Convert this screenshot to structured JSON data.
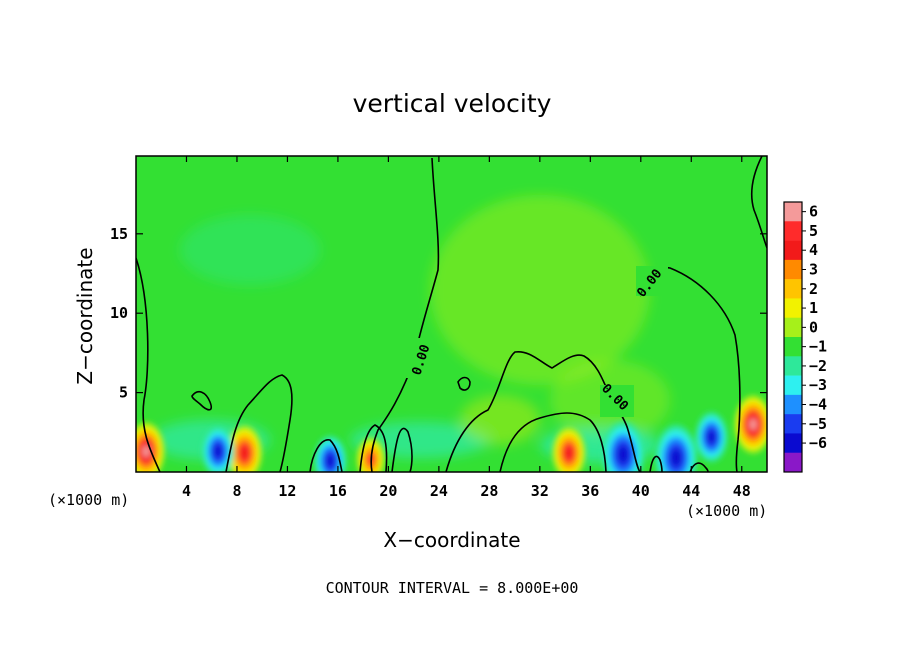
{
  "chart_data": {
    "type": "heatmap",
    "title": "vertical velocity",
    "xlabel": "X−coordinate",
    "ylabel": "Z−coordinate",
    "x_unit_left": "(×1000 m)",
    "x_unit_right": "(×1000 m)",
    "xlim": [
      0,
      50
    ],
    "ylim": [
      0,
      19.9
    ],
    "x_ticks": [
      4,
      8,
      12,
      16,
      20,
      24,
      28,
      32,
      36,
      40,
      44,
      48
    ],
    "y_ticks": [
      5,
      10,
      15
    ],
    "colorbar": {
      "levels": [
        "6",
        "5",
        "4",
        "3",
        "2",
        "1",
        "0",
        "−1",
        "−2",
        "−3",
        "−4",
        "−5",
        "−6"
      ],
      "colors": [
        "#f49a9a",
        "#ff2b2b",
        "#f21a1a",
        "#ff8a00",
        "#ffc400",
        "#f2f200",
        "#a6f01a",
        "#33e033",
        "#2ee89a",
        "#2ef0f0",
        "#1e90ff",
        "#1a3cf0",
        "#0a0ad0",
        "#8a18c8"
      ]
    },
    "contour_label": "0.00",
    "footnote": "CONTOUR INTERVAL = 8.000E+00",
    "features": [
      {
        "x": 0.8,
        "z": 1.3,
        "w": 2.5,
        "color": "red"
      },
      {
        "x": 8.6,
        "z": 1.2,
        "w": 2.3,
        "color": "red"
      },
      {
        "x": 18.6,
        "z": 0.8,
        "w": 1.6,
        "color": "orange"
      },
      {
        "x": 34.3,
        "z": 1.2,
        "w": 2.1,
        "color": "red"
      },
      {
        "x": 48.9,
        "z": 3.0,
        "w": 2.5,
        "color": "red"
      },
      {
        "x": 6.5,
        "z": 1.3,
        "w": -2.0,
        "color": "blue"
      },
      {
        "x": 15.4,
        "z": 0.7,
        "w": -2.0,
        "color": "blue"
      },
      {
        "x": 38.6,
        "z": 1.1,
        "w": -3.0,
        "color": "blue"
      },
      {
        "x": 42.8,
        "z": 0.9,
        "w": -3.0,
        "color": "blue"
      },
      {
        "x": 45.6,
        "z": 2.2,
        "w": -2.0,
        "color": "cyan"
      }
    ]
  }
}
